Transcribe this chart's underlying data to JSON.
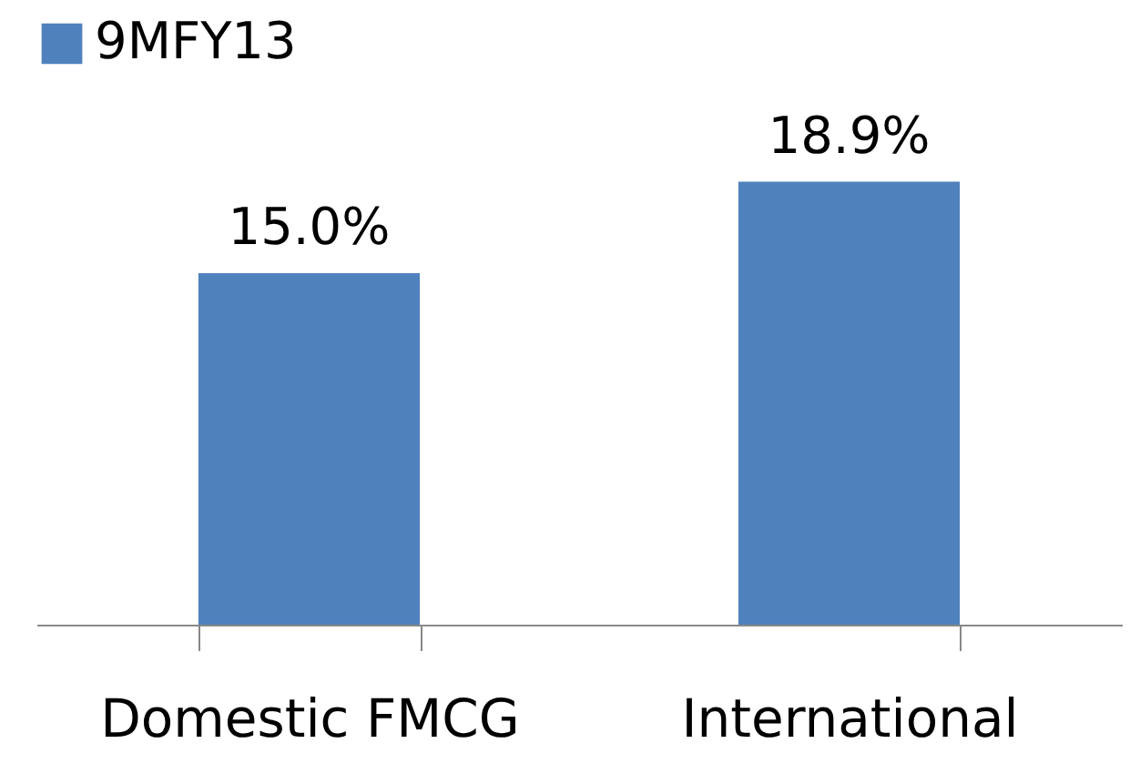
{
  "chart_data": {
    "type": "bar",
    "categories": [
      "Domestic FMCG",
      "International"
    ],
    "series": [
      {
        "name": "9MFY13",
        "color": "#4f81bd",
        "values": [
          15.0,
          18.9
        ],
        "value_labels": [
          "15.0%",
          "18.9%"
        ]
      }
    ],
    "legend": "top",
    "grid": false
  }
}
